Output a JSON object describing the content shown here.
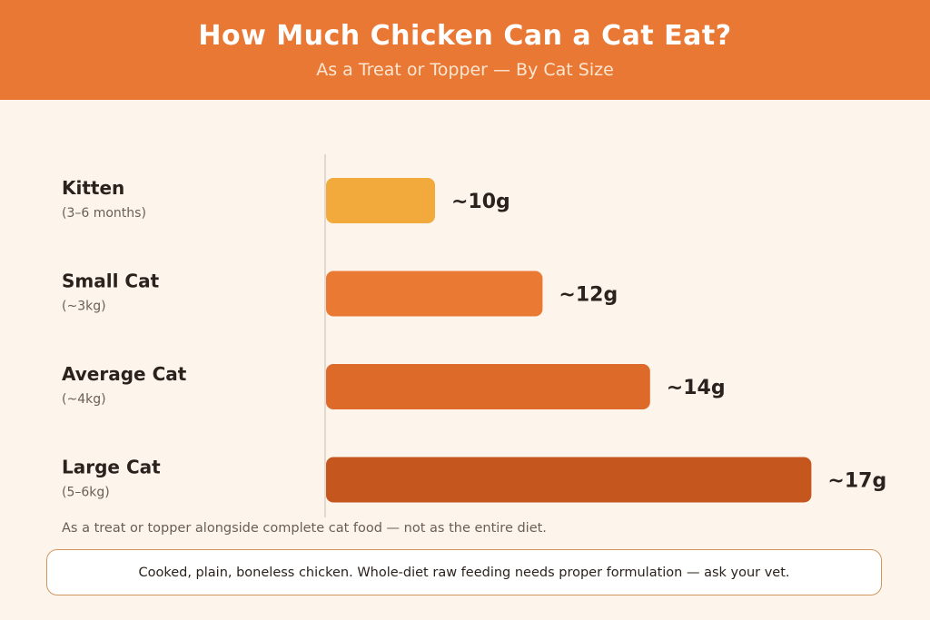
{
  "header": {
    "title": "How Much Chicken Can a Cat Eat?",
    "subtitle": "As a Treat or Topper — By Cat Size"
  },
  "chart_data": {
    "type": "bar",
    "orientation": "horizontal",
    "title": "How Much Chicken Can a Cat Eat?",
    "subtitle": "As a Treat or Topper — By Cat Size",
    "categories": [
      "Kitten",
      "Small Cat",
      "Average Cat",
      "Large Cat"
    ],
    "category_notes": [
      "(3–6 months)",
      "(~3kg)",
      "(~4kg)",
      "(5–6kg)"
    ],
    "values": [
      10,
      12,
      14,
      17
    ],
    "value_labels": [
      "~10g",
      "~12g",
      "~14g",
      "~17g"
    ],
    "unit": "g",
    "colors": [
      "#f2aa3c",
      "#ea7a33",
      "#de6a2a",
      "#c5561e"
    ],
    "grid": false,
    "legend": "none"
  },
  "footnote": "As a treat or topper alongside complete cat food — not as the entire diet.",
  "note": "Cooked, plain, boneless chicken. Whole-diet raw feeding needs proper formulation — ask your vet."
}
